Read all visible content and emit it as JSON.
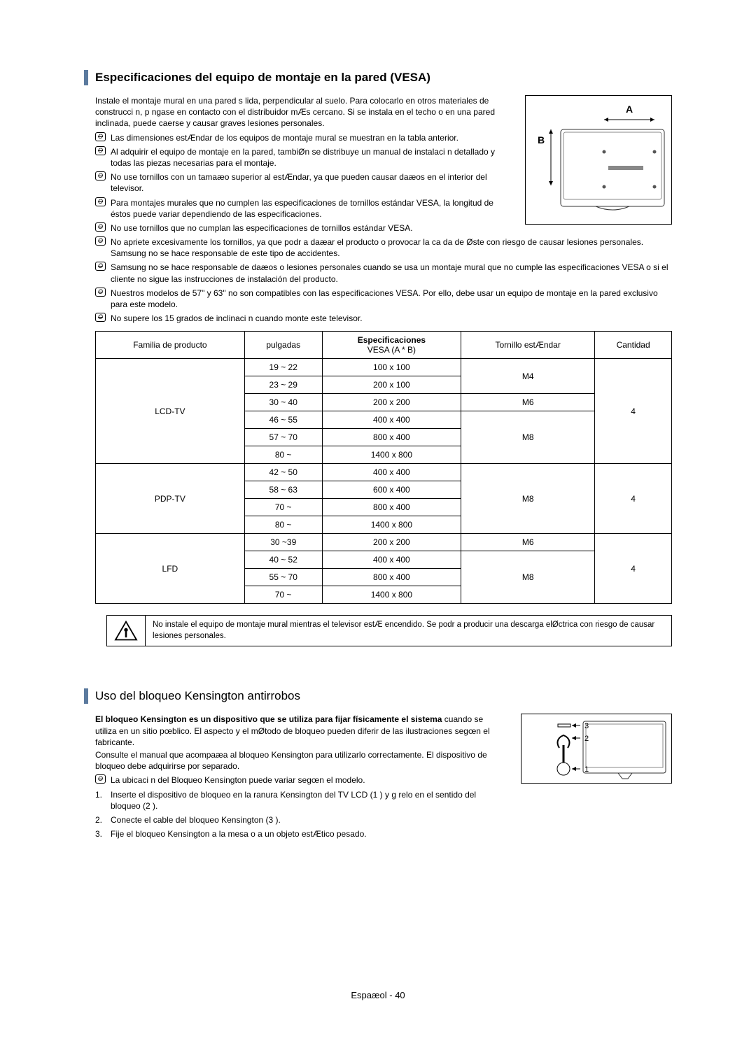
{
  "section1": {
    "title": "Especificaciones del equipo de montaje en la pared (VESA)",
    "intro": "Instale el montaje mural en una pared s lida, perpendicular al suelo. Para colocarlo en otros materiales de construcci n, p ngase en contacto con el distribuidor mÆs cercano. Si se instala en el techo o en una pared inclinada, puede caerse y causar graves lesiones personales.",
    "notes_narrow": [
      "Las dimensiones estÆndar de los equipos de montaje mural se muestran en la tabla anterior.",
      "Al adquirir el equipo de montaje en la pared, tambiØn se distribuye un manual de instalaci n detallado y todas las piezas necesarias para el montaje.",
      "No use tornillos con un tamaæo superior al estÆndar, ya que pueden causar daæos en el interior del televisor.",
      "Para montajes murales que no cumplen las especificaciones de tornillos estándar VESA, la longitud de éstos puede variar dependiendo de las especificaciones."
    ],
    "notes_full": [
      "No use tornillos que no cumplan las especificaciones de tornillos estándar VESA.",
      "No apriete excesivamente los tornillos, ya que podr a daæar el producto o provocar la ca da de Øste con riesgo de causar lesiones personales. Samsung no se hace responsable de este tipo de accidentes.",
      "Samsung no se hace responsable de daæos o lesiones personales cuando se usa un montaje mural que no cumple las especificaciones VESA o si el cliente no sigue las instrucciones de instalación del producto.",
      "Nuestros modelos de 57\" y 63\" no son compatibles con las especificaciones VESA. Por ello, debe usar un equipo de montaje en la pared exclusivo para este modelo.",
      "No supere los 15 grados de inclinaci n cuando monte este televisor."
    ],
    "diagram": {
      "a": "A",
      "b": "B"
    },
    "table": {
      "headers": [
        "Familia de producto",
        "pulgadas",
        "Especificaciones VESA (A * B)",
        "Tornillo estÆndar",
        "Cantidad"
      ],
      "groups": [
        {
          "family": "LCD-TV",
          "rows": [
            {
              "inch": "19 ~ 22",
              "vesa": "100 x 100",
              "screw": "M4",
              "screw_span": 2,
              "qty": "4",
              "qty_span": 6
            },
            {
              "inch": "23 ~ 29",
              "vesa": "200 x 100"
            },
            {
              "inch": "30 ~ 40",
              "vesa": "200 x 200",
              "screw": "M6",
              "screw_span": 1
            },
            {
              "inch": "46 ~ 55",
              "vesa": "400 x 400",
              "screw": "M8",
              "screw_span": 3
            },
            {
              "inch": "57 ~ 70",
              "vesa": "800 x 400"
            },
            {
              "inch": "80 ~",
              "vesa": "1400 x 800"
            }
          ]
        },
        {
          "family": "PDP-TV",
          "rows": [
            {
              "inch": "42 ~ 50",
              "vesa": "400 x 400",
              "screw": "M8",
              "screw_span": 4,
              "qty": "4",
              "qty_span": 4
            },
            {
              "inch": "58 ~ 63",
              "vesa": "600 x 400"
            },
            {
              "inch": "70 ~",
              "vesa": "800 x 400"
            },
            {
              "inch": "80 ~",
              "vesa": "1400 x 800"
            }
          ]
        },
        {
          "family": "LFD",
          "rows": [
            {
              "inch": "30 ~39",
              "vesa": "200 x 200",
              "screw": "M6",
              "screw_span": 1,
              "qty": "4",
              "qty_span": 4
            },
            {
              "inch": "40 ~ 52",
              "vesa": "400 x 400",
              "screw": "M8",
              "screw_span": 3
            },
            {
              "inch": "55 ~ 70",
              "vesa": "800 x 400"
            },
            {
              "inch": "70 ~",
              "vesa": "1400 x 800"
            }
          ]
        }
      ]
    },
    "warning": "No instale el equipo de montaje mural mientras el televisor estÆ encendido. Se podr a producir una descarga elØctrica con riesgo de causar lesiones personales."
  },
  "section2": {
    "title": "Uso del bloqueo Kensington antirrobos",
    "p1_bold": "El bloqueo Kensington es un dispositivo que se utiliza para fijar físicamente el sistema",
    "p1_rest": "cuando se utiliza en un sitio pœblico. El aspecto y el mØtodo de bloqueo pueden diferir de las ilustraciones segœn el fabricante.",
    "p2": "Consulte el manual que acompaæa al bloqueo Kensington para utilizarlo correctamente. El dispositivo de bloqueo debe adquirirse por separado.",
    "note": "La ubicaci n del Bloqueo Kensington puede variar segœn el modelo.",
    "steps": [
      "Inserte el dispositivo de bloqueo en la ranura Kensington del TV LCD (1  ) y g relo en el sentido del bloqueo (2  ).",
      "Conecte el cable del bloqueo Kensington (3  ).",
      "Fije el bloqueo Kensington a la mesa o a un objeto estÆtico pesado."
    ],
    "diagram_labels": [
      "3",
      "2",
      "1"
    ]
  },
  "footer": "Espaæol - 40",
  "style": {
    "accent": "#5b7a9e",
    "text": "#000000",
    "bg": "#ffffff",
    "body_fontsize": 12,
    "title_fontsize": 17
  }
}
